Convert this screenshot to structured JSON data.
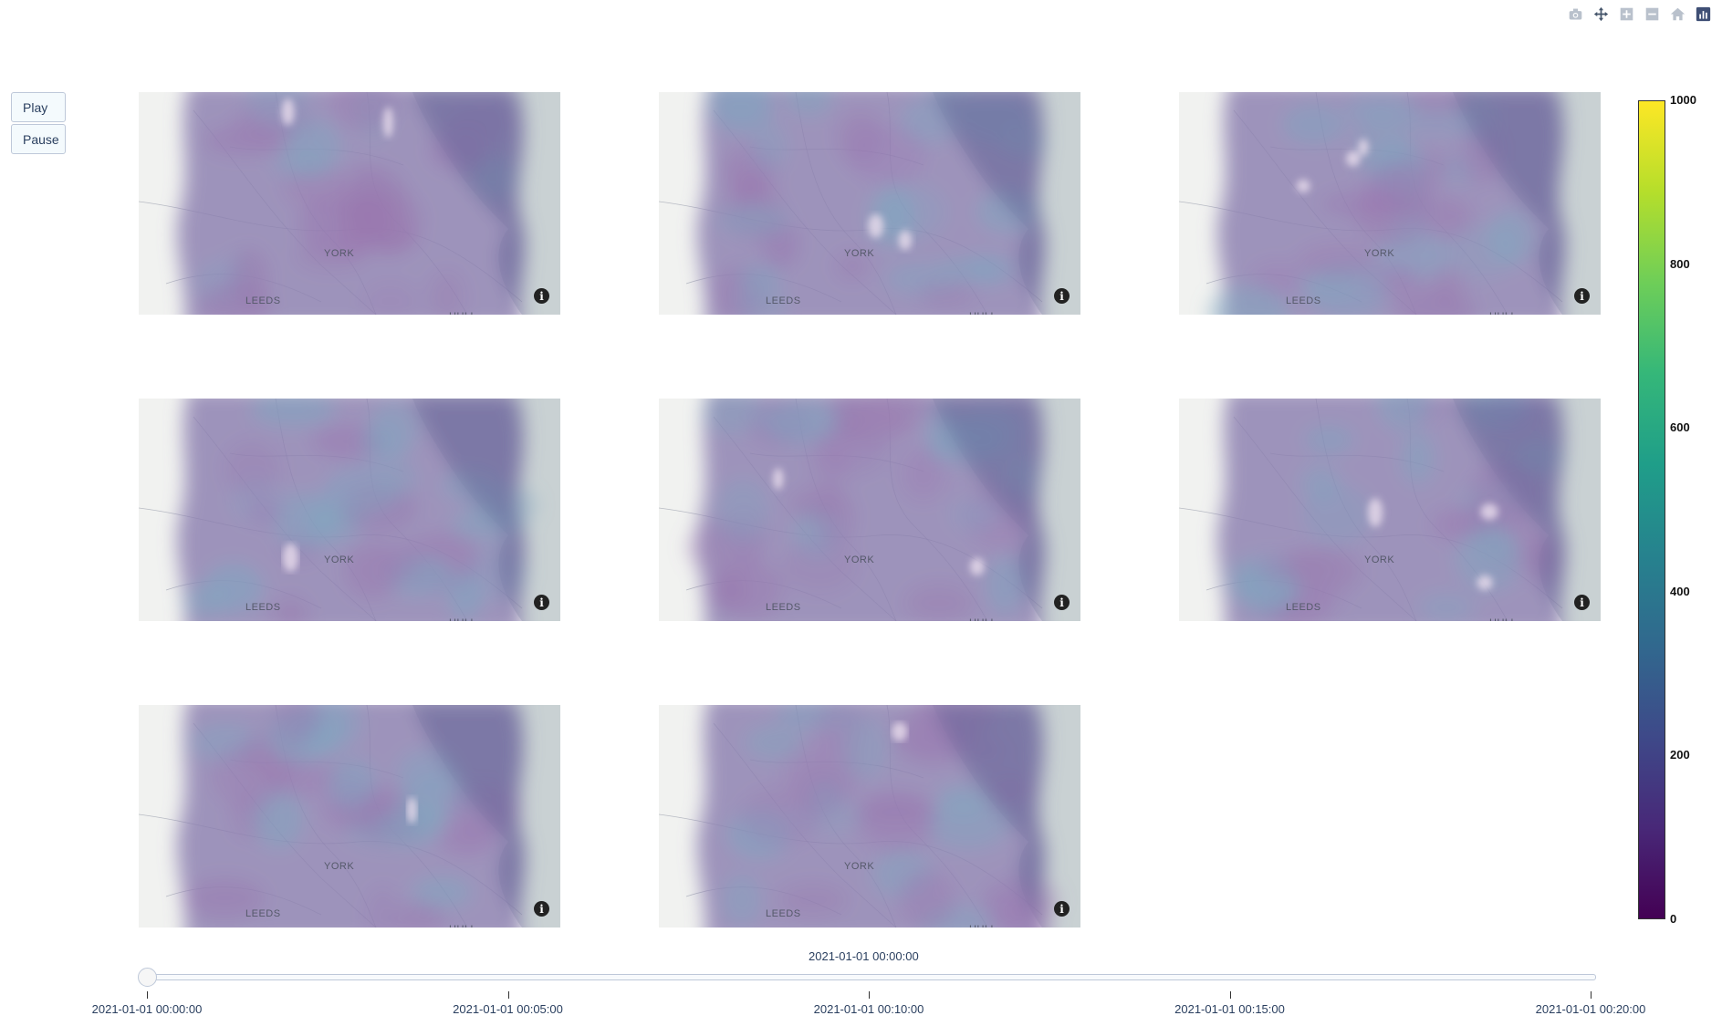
{
  "modebar": {
    "icons": [
      "camera-icon",
      "pan-icon",
      "zoom-in-icon",
      "zoom-out-icon",
      "home-icon",
      "plotly-logo-icon"
    ]
  },
  "controls": {
    "play_label": "Play",
    "pause_label": "Pause"
  },
  "chart_data": {
    "type": "heatmap",
    "subtype": "density_mapbox_animation",
    "panel_count": 8,
    "grid": {
      "rows": 3,
      "cols": 3
    },
    "map_labels": [
      "YORK",
      "LEEDS",
      "HULL"
    ],
    "colorscale": "Viridis",
    "colorscale_colors": [
      "#440154",
      "#482878",
      "#3e4989",
      "#31688e",
      "#26828e",
      "#1f9e89",
      "#35b779",
      "#6ece58",
      "#b5de2b",
      "#fde725"
    ],
    "colorbar": {
      "range": [
        0,
        1000
      ],
      "ticks": [
        0,
        200,
        400,
        600,
        800,
        1000
      ]
    },
    "slider": {
      "current": "2021-01-01 00:00:00",
      "steps": [
        "2021-01-01 00:00:00",
        "2021-01-01 00:05:00",
        "2021-01-01 00:10:00",
        "2021-01-01 00:15:00",
        "2021-01-01 00:20:00"
      ]
    }
  }
}
